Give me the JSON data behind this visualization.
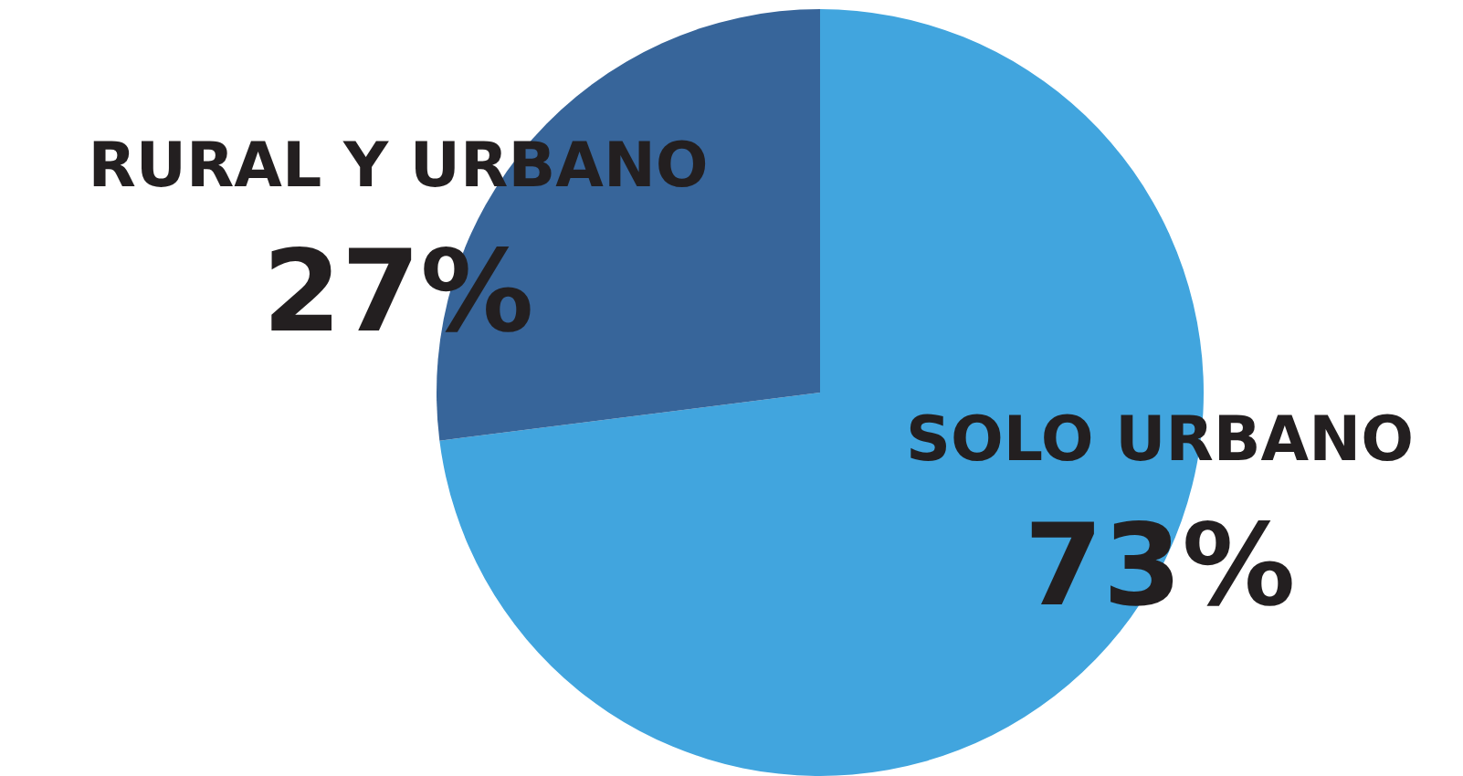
{
  "chart_data": {
    "type": "pie",
    "categories": [
      "SOLO URBANO",
      "RURAL Y URBANO"
    ],
    "values": [
      73,
      27
    ],
    "colors": [
      "#41a5de",
      "#37659a"
    ],
    "value_labels": [
      "73%",
      "27%"
    ]
  }
}
